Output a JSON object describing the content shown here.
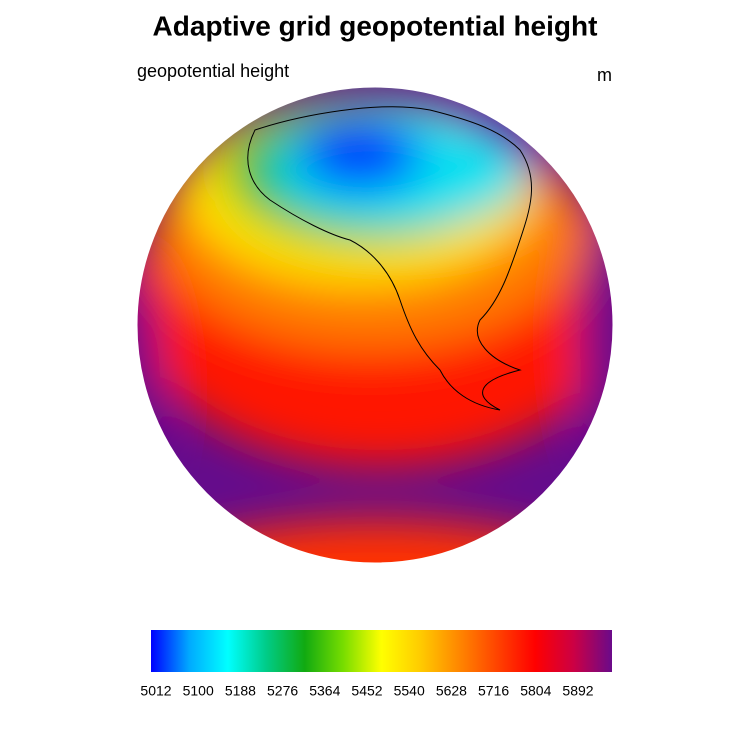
{
  "header": {
    "title": "Adaptive grid geopotential height",
    "left_label": "geopotential height",
    "right_label": "m"
  },
  "colorbar": {
    "labels": [
      "5012",
      "5100",
      "5188",
      "5276",
      "5364",
      "5452",
      "5540",
      "5628",
      "5716",
      "5804",
      "5892"
    ],
    "colors": [
      "#0000ff",
      "#00aaff",
      "#00ffff",
      "#00cc88",
      "#11aa11",
      "#77dd00",
      "#ffff00",
      "#ffcc00",
      "#ff8800",
      "#ff4400",
      "#ff0000",
      "#cc0044",
      "#6a0a8a"
    ]
  }
}
